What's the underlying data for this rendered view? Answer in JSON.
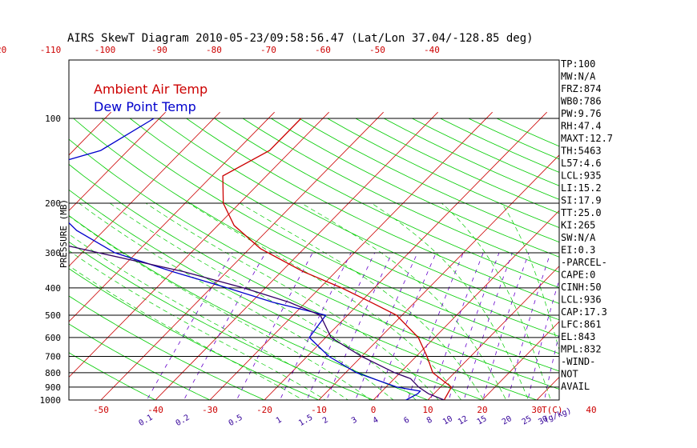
{
  "title": "AIRS SkewT Diagram 2010-05-23/09:58:56.47 (Lat/Lon 37.04/-128.85 deg)",
  "colors": {
    "temp": "#cc0000",
    "dewpoint": "#0000cc",
    "isotherm": "#cc0000",
    "dry_adiabat": "#00cc00",
    "moist_adiabat": "#00cc00",
    "mixing_ratio": "#6600cc",
    "parcel": "#330066"
  },
  "chart_data": {
    "type": "line",
    "title": "AIRS SkewT Diagram 2010-05-23/09:58:56.47 (Lat/Lon 37.04/-128.85 deg)",
    "ylabel": "PRESSURE (MB)",
    "xlabel": "T(C)",
    "mixing_ratio_unit": "(g/kg)",
    "pressure_ticks": [
      100,
      200,
      300,
      400,
      500,
      600,
      700,
      800,
      900,
      1000
    ],
    "top_temp_ticks": [
      -120,
      -110,
      -100,
      -90,
      -80,
      -70,
      -60,
      -50,
      -40
    ],
    "bottom_temp_ticks": [
      -50,
      -40,
      -30,
      -20,
      -10,
      0,
      10,
      20,
      30,
      40
    ],
    "mixing_ratio_ticks": [
      "0.1",
      "0.2",
      "0.5",
      "1",
      "1.5",
      "2",
      "3",
      "4",
      "6",
      "8",
      "10",
      "12",
      "15",
      "20",
      "25",
      "30",
      "40"
    ],
    "legend": [
      "Ambient Air Temp",
      "Dew Point Temp"
    ],
    "series": [
      {
        "name": "Ambient Air Temp",
        "points": [
          [
            100,
            -64
          ],
          [
            130,
            -64
          ],
          [
            160,
            -68
          ],
          [
            200,
            -63
          ],
          [
            240,
            -57
          ],
          [
            290,
            -48
          ],
          [
            350,
            -36
          ],
          [
            400,
            -26
          ],
          [
            450,
            -18
          ],
          [
            500,
            -11
          ],
          [
            600,
            -3
          ],
          [
            700,
            2
          ],
          [
            800,
            6
          ],
          [
            900,
            12
          ],
          [
            1000,
            13
          ]
        ]
      },
      {
        "name": "Dew Point Temp",
        "points": [
          [
            100,
            -91
          ],
          [
            130,
            -95
          ],
          [
            150,
            -103
          ],
          [
            200,
            -95
          ],
          [
            250,
            -85
          ],
          [
            300,
            -74
          ],
          [
            350,
            -60
          ],
          [
            400,
            -47
          ],
          [
            450,
            -36
          ],
          [
            500,
            -24
          ],
          [
            600,
            -23
          ],
          [
            700,
            -16
          ],
          [
            800,
            -8
          ],
          [
            900,
            2
          ],
          [
            930,
            7
          ],
          [
            950,
            7
          ],
          [
            1000,
            6
          ]
        ]
      },
      {
        "name": "",
        "points": [
          [
            1000,
            13
          ],
          [
            950,
            9
          ],
          [
            900,
            6
          ],
          [
            840,
            3
          ],
          [
            800,
            -1
          ],
          [
            700,
            -10
          ],
          [
            600,
            -19
          ],
          [
            500,
            -25
          ],
          [
            450,
            -33
          ],
          [
            400,
            -44
          ],
          [
            350,
            -58
          ],
          [
            300,
            -77
          ],
          [
            250,
            -99
          ],
          [
            200,
            -122
          ],
          [
            150,
            -140
          ],
          [
            100,
            -160
          ]
        ]
      }
    ],
    "stats": [
      "TP:100",
      "MW:N/A",
      "FRZ:874",
      "WB0:786",
      "PW:9.76",
      "RH:47.4",
      "MAXT:12.7",
      "TH:5463",
      "L57:4.6",
      "LCL:935",
      "LI:15.2",
      "SI:17.9",
      "TT:25.0",
      "KI:265",
      "SW:N/A",
      "EI:0.3",
      "-PARCEL-",
      "CAPE:0",
      "CINH:50",
      "LCL:936",
      "CAP:17.3",
      "LFC:861",
      "EL:843",
      "MPL:832",
      "-WIND-",
      "NOT",
      "AVAIL"
    ]
  }
}
